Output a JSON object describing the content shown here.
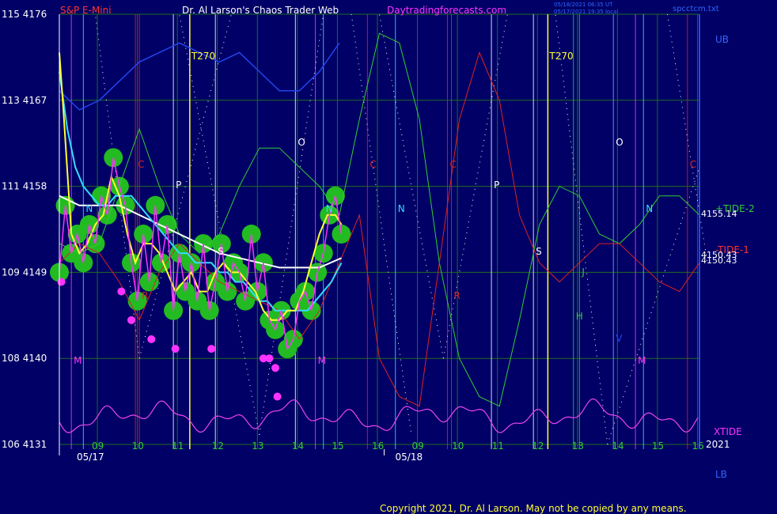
{
  "header": {
    "instrument": "S&P E-Mini",
    "title": "Dr. Al Larson's Chaos Trader Web",
    "site": "Daytradingforecasts.com",
    "timestamp_ut": "05/18/2021 06:35 UT",
    "timestamp_local": "05/17/2021 19:35 local",
    "file": "spcctcm.txt"
  },
  "copyright": "Copyright 2021, Dr. Al Larson. May not be copied by any means.",
  "colors": {
    "background": "#000066",
    "grid": "#1e6e1e",
    "price": "#ff33ff",
    "yellow_avg": "#ffff33",
    "cyan_avg": "#33ddff",
    "white_avg": "#ffffff",
    "envelope": "#2244ee",
    "tide1": "#dd2222",
    "tide2": "#33cc33",
    "xtide": "#ee44ee"
  },
  "chart_data": {
    "type": "line",
    "y_axis_labels": [
      {
        "cycle": "115",
        "price": "4176"
      },
      {
        "cycle": "113",
        "price": "4167"
      },
      {
        "cycle": "111",
        "price": "4158"
      },
      {
        "cycle": "109",
        "price": "4149"
      },
      {
        "cycle": "108",
        "price": "4140"
      },
      {
        "cycle": "106",
        "price": "4131"
      }
    ],
    "ylim": [
      4131,
      4176
    ],
    "x_hour_labels": [
      "09",
      "10",
      "11",
      "12",
      "13",
      "14",
      "15",
      "16",
      "09",
      "10",
      "11",
      "12",
      "13",
      "14",
      "15",
      "16"
    ],
    "x_date_labels": [
      "05/17",
      "05/18"
    ],
    "xlim": [
      0,
      16
    ],
    "right_labels": {
      "ub": "UB",
      "lb": "LB",
      "tide2": "+TIDE-2",
      "tide2_value": "4155.14",
      "tide1": "-TIDE-1",
      "tide1_value": "4150.43",
      "tide1_value_b": "4150.43",
      "xtide": "XTIDE",
      "year": "2021"
    },
    "vertical_markers": [
      {
        "label": "M",
        "x": 0.3,
        "color": "#ff33ff"
      },
      {
        "label": "N",
        "x": 0.6,
        "color": "#33ddff"
      },
      {
        "label": "C",
        "x": 1.9,
        "color": "#dd2222"
      },
      {
        "label": "R",
        "x": 2.0,
        "color": "#dd2222"
      },
      {
        "label": "P",
        "x": 2.85,
        "color": "#ffffff"
      },
      {
        "label": "S",
        "x": 3.9,
        "color": "#ffffff"
      },
      {
        "label": "O",
        "x": 5.9,
        "color": "#ffffff"
      },
      {
        "label": "M",
        "x": 6.4,
        "color": "#ff33ff"
      },
      {
        "label": "N",
        "x": 6.6,
        "color": "#33ddff"
      },
      {
        "label": "C",
        "x": 7.7,
        "color": "#dd2222"
      },
      {
        "label": "N",
        "x": 8.4,
        "color": "#33ddff"
      },
      {
        "label": "C",
        "x": 9.7,
        "color": "#dd2222"
      },
      {
        "label": "R",
        "x": 9.8,
        "color": "#dd2222"
      },
      {
        "label": "P",
        "x": 10.8,
        "color": "#ffffff"
      },
      {
        "label": "S",
        "x": 11.85,
        "color": "#ffffff"
      },
      {
        "label": "J",
        "x": 13.0,
        "color": "#33cc33"
      },
      {
        "label": "H",
        "x": 12.85,
        "color": "#33cc33"
      },
      {
        "label": "O",
        "x": 13.85,
        "color": "#ffffff"
      },
      {
        "label": "V",
        "x": 13.85,
        "color": "#2244ee"
      },
      {
        "label": "M",
        "x": 14.4,
        "color": "#ff33ff"
      },
      {
        "label": "N",
        "x": 14.6,
        "color": "#33ddff"
      },
      {
        "label": "C",
        "x": 15.7,
        "color": "#dd2222"
      }
    ],
    "t270_labels": [
      {
        "label": "T270",
        "x": 3.3
      },
      {
        "label": "T270",
        "x": 12.25
      }
    ],
    "series": [
      {
        "name": "",
        "color": "#ff33ff",
        "x": [
          0.0,
          0.15,
          0.3,
          0.45,
          0.6,
          0.75,
          0.9,
          1.05,
          1.2,
          1.35,
          1.5,
          1.65,
          1.8,
          1.95,
          2.1,
          2.25,
          2.4,
          2.55,
          2.7,
          2.85,
          3.0,
          3.15,
          3.3,
          3.45,
          3.6,
          3.75,
          3.9,
          4.05,
          4.2,
          4.35,
          4.5,
          4.65,
          4.8,
          4.95,
          5.1,
          5.25,
          5.4,
          5.55,
          5.7,
          5.85,
          6.0,
          6.15,
          6.3,
          6.45,
          6.6,
          6.75,
          6.9,
          7.05
        ],
        "y": [
          4149,
          4156,
          4151,
          4153,
          4150,
          4154,
          4152,
          4157,
          4155,
          4161,
          4158,
          4156,
          4150,
          4146,
          4153,
          4148,
          4156,
          4150,
          4154,
          4145,
          4151,
          4147,
          4150,
          4146,
          4152,
          4145,
          4148,
          4152,
          4147,
          4150,
          4149,
          4146,
          4153,
          4147,
          4150,
          4144,
          4143,
          4145,
          4141,
          4142,
          4146,
          4147,
          4145,
          4149,
          4151,
          4155,
          4157,
          4153
        ]
      },
      {
        "name": "",
        "color": "#ffff33",
        "x": [
          0.0,
          0.1,
          0.3,
          0.5,
          0.7,
          0.9,
          1.1,
          1.3,
          1.5,
          1.7,
          1.9,
          2.1,
          2.3,
          2.5,
          2.7,
          2.9,
          3.1,
          3.3,
          3.5,
          3.7,
          3.9,
          4.1,
          4.3,
          4.5,
          4.7,
          4.9,
          5.1,
          5.3,
          5.5,
          5.7,
          5.9,
          6.1,
          6.3,
          6.5,
          6.7,
          6.9,
          7.05
        ],
        "y": [
          4172,
          4166,
          4153,
          4151,
          4152,
          4154,
          4155,
          4159,
          4157,
          4153,
          4150,
          4152,
          4152,
          4151,
          4149,
          4147,
          4148,
          4149,
          4147,
          4147,
          4149,
          4150,
          4149,
          4149,
          4148,
          4147,
          4145,
          4144,
          4144,
          4145,
          4145,
          4147,
          4150,
          4153,
          4155,
          4155,
          4154
        ]
      },
      {
        "name": "",
        "color": "#33ddff",
        "x": [
          0.0,
          0.2,
          0.4,
          0.6,
          0.8,
          1.0,
          1.2,
          1.4,
          1.6,
          1.8,
          2.0,
          2.2,
          2.4,
          2.6,
          2.8,
          3.0,
          3.2,
          3.4,
          3.6,
          3.8,
          4.0,
          4.2,
          4.4,
          4.6,
          4.8,
          5.0,
          5.2,
          5.4,
          5.6,
          5.8,
          6.0,
          6.2,
          6.4,
          6.6,
          6.8,
          7.05
        ],
        "y": [
          4170,
          4164,
          4160,
          4158,
          4157,
          4156,
          4156,
          4157,
          4157,
          4157,
          4156,
          4155,
          4154,
          4153,
          4152,
          4151,
          4151,
          4150,
          4150,
          4150,
          4149,
          4149,
          4148,
          4148,
          4147,
          4146,
          4146,
          4145,
          4145,
          4145,
          4145,
          4145,
          4146,
          4147,
          4148,
          4150
        ]
      },
      {
        "name": "",
        "color": "#ffffff",
        "x": [
          0.0,
          0.5,
          1.0,
          1.5,
          2.0,
          2.5,
          3.0,
          3.5,
          4.0,
          4.5,
          5.0,
          5.5,
          6.0,
          6.5,
          7.05
        ],
        "y": [
          4157,
          4156,
          4156,
          4156,
          4155,
          4154,
          4153,
          4152,
          4151,
          4150.5,
          4150,
          4149.5,
          4149.5,
          4149.5,
          4150.5
        ]
      },
      {
        "name": "",
        "color": "#33cc33",
        "x": [
          0.0,
          0.5,
          1.0,
          1.5,
          2.0,
          2.5,
          3.0,
          3.5,
          4.0,
          4.5,
          5.0,
          5.5,
          6.0,
          6.5,
          7.0,
          7.5,
          8.0,
          8.5,
          9.0,
          9.5,
          10.0,
          10.5,
          11.0,
          11.5,
          12.0,
          12.5,
          13.0,
          13.5,
          14.0,
          14.5,
          15.0,
          15.5,
          16.0
        ],
        "y": [
          4152,
          4151,
          4152,
          4158,
          4164,
          4158,
          4153,
          4151,
          4153,
          4158,
          4162,
          4162,
          4160,
          4158,
          4155,
          4165,
          4174,
          4173,
          4165,
          4150,
          4140,
          4136,
          4135,
          4144,
          4154,
          4158,
          4157,
          4153,
          4152,
          4154,
          4157,
          4157,
          4155
        ]
      },
      {
        "name": "",
        "color": "#dd2222",
        "x": [
          0.0,
          0.5,
          1.0,
          1.5,
          2.0,
          2.5,
          3.0,
          3.5,
          4.0,
          4.5,
          5.0,
          5.5,
          6.0,
          6.5,
          7.0,
          7.5,
          8.0,
          8.5,
          9.0,
          9.5,
          10.0,
          10.5,
          11.0,
          11.5,
          12.0,
          12.5,
          13.0,
          13.5,
          14.0,
          14.5,
          15.0,
          15.5,
          16.0
        ],
        "y": [
          4150,
          4152,
          4151,
          4148,
          4144,
          4149,
          4152,
          4150,
          4148,
          4147,
          4146,
          4145,
          4142,
          4145,
          4150,
          4155,
          4140,
          4136,
          4135,
          4150,
          4165,
          4172,
          4167,
          4155,
          4150,
          4148,
          4150,
          4152,
          4152,
          4150,
          4148,
          4147,
          4150
        ]
      },
      {
        "name": "",
        "color": "#2244ee",
        "x": [
          0.0,
          0.5,
          1.0,
          1.5,
          2.0,
          2.5,
          3.0,
          3.5,
          4.0,
          4.5,
          5.0,
          5.5,
          6.0,
          6.5,
          7.0
        ],
        "y": [
          4168,
          4166,
          4167,
          4169,
          4171,
          4172,
          4173,
          4172,
          4171,
          4172,
          4170,
          4168,
          4168,
          4170,
          4173
        ]
      }
    ]
  }
}
